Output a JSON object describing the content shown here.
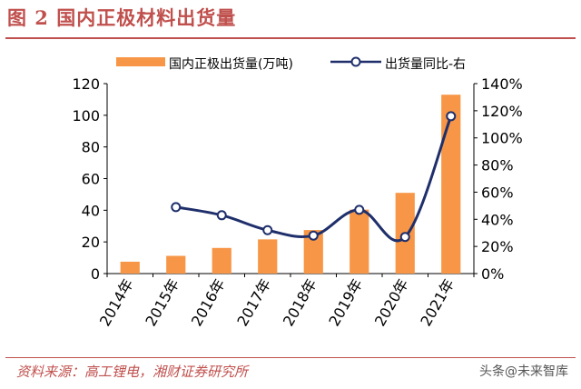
{
  "header": {
    "title": "图 2 国内正极材料出货量"
  },
  "footer": {
    "source": "资料来源：高工锂电，湘财证券研究所",
    "watermark": "头条@未来智库"
  },
  "colors": {
    "bar": "#F79646",
    "line": "#1F2F6B",
    "title": "#c0504d"
  },
  "chart_data": {
    "type": "bar",
    "categories": [
      "2014年",
      "2015年",
      "2016年",
      "2017年",
      "2018年",
      "2019年",
      "2020年",
      "2021年"
    ],
    "series": [
      {
        "name": "国内正极出货量(万吨)",
        "type": "bar",
        "axis": "left",
        "values": [
          7.5,
          11.2,
          16.2,
          21.6,
          27.5,
          40.4,
          51.0,
          113.0
        ]
      },
      {
        "name": "出货量同比-右",
        "type": "line",
        "axis": "right",
        "values": [
          null,
          0.49,
          0.43,
          0.32,
          0.28,
          0.47,
          0.27,
          1.16
        ]
      }
    ],
    "ylim_left": [
      0,
      120
    ],
    "yticks_left": [
      "0",
      "20",
      "40",
      "60",
      "80",
      "100",
      "120"
    ],
    "ylim_right": [
      0,
      1.4
    ],
    "yticks_right": [
      "0%",
      "20%",
      "40%",
      "60%",
      "80%",
      "100%",
      "120%",
      "140%"
    ],
    "legend_position": "top",
    "grid": false
  }
}
